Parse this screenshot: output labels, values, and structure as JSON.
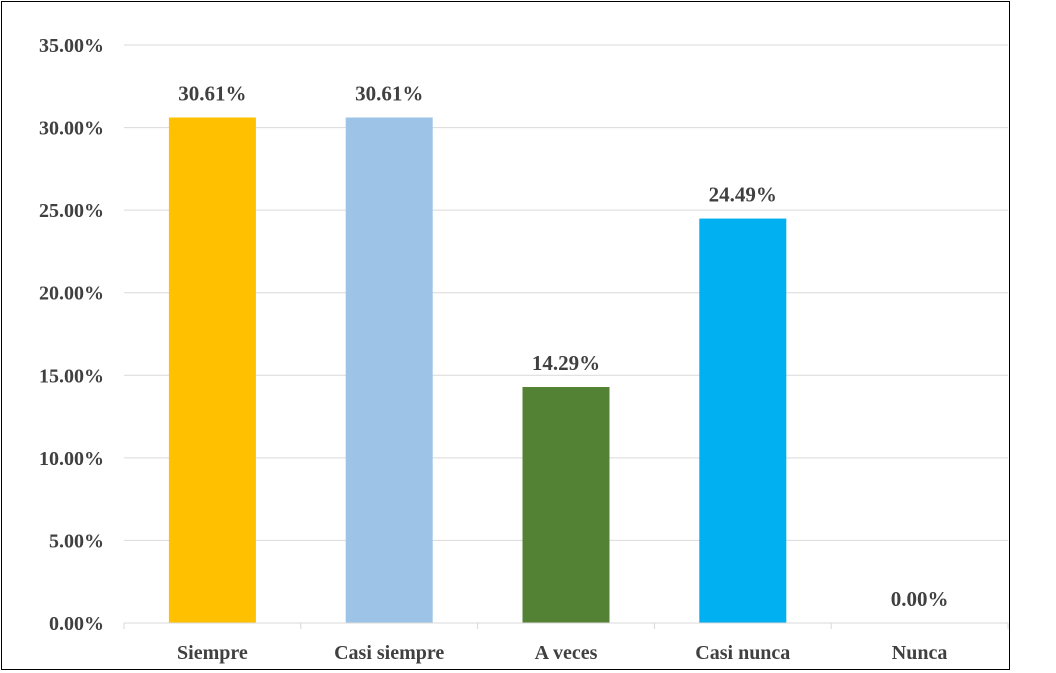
{
  "chart_data": {
    "type": "bar",
    "title": "",
    "xlabel": "",
    "ylabel": "",
    "categories": [
      "Siempre",
      "Casi siempre",
      "A veces",
      "Casi nunca",
      "Nunca"
    ],
    "values": [
      30.61,
      30.61,
      14.29,
      24.49,
      0.0
    ],
    "data_labels": [
      "30.61%",
      "30.61%",
      "14.29%",
      "24.49%",
      "0.00%"
    ],
    "bar_colors": [
      "#FFC000",
      "#9DC3E6",
      "#548235",
      "#00B0F0",
      "#BFBFBF"
    ],
    "ylim": [
      0,
      35
    ],
    "yticks": [
      0,
      5,
      10,
      15,
      20,
      25,
      30,
      35
    ],
    "ytick_labels": [
      "0.00%",
      "5.00%",
      "10.00%",
      "15.00%",
      "20.00%",
      "25.00%",
      "30.00%",
      "35.00%"
    ],
    "grid": true,
    "gridline_color": "#D9D9D9",
    "text_color": "#404040",
    "legend": "none"
  }
}
